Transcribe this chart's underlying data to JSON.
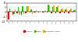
{
  "categories": [
    "T1",
    "T2",
    "T3",
    "T4",
    "T5",
    "T6",
    "T7",
    "T8",
    "T9",
    "T10",
    "T11",
    "T12",
    "T13",
    "T14",
    "T15",
    "T16"
  ],
  "series": {
    "Synthetic": [
      -8,
      -3,
      -1.5,
      -3,
      -1,
      -0.5,
      -0.5,
      -0.3,
      -0.5,
      -0.3,
      -1.5,
      -1,
      -1.5,
      -1,
      -1,
      -0.8
    ],
    "Organic": [
      4,
      -2,
      5,
      6,
      6,
      3,
      -0.5,
      0.3,
      -0.3,
      8,
      5,
      5,
      3,
      3,
      2,
      2
    ],
    "Biodynamic": [
      1,
      3,
      -3,
      -2,
      6,
      -2,
      1,
      0.2,
      1,
      7,
      7,
      7,
      4,
      4,
      4,
      3
    ]
  },
  "colors": {
    "Synthetic": "#dd0000",
    "Organic": "#33bb00",
    "Biodynamic": "#ffaa00"
  },
  "ylim": [
    -10,
    10
  ],
  "yticks": [
    -10,
    -5,
    0,
    5,
    10
  ],
  "background_color": "#ffffff",
  "legend_labels": [
    "Synthetic",
    "Organic",
    "Biodynamic Sound"
  ]
}
